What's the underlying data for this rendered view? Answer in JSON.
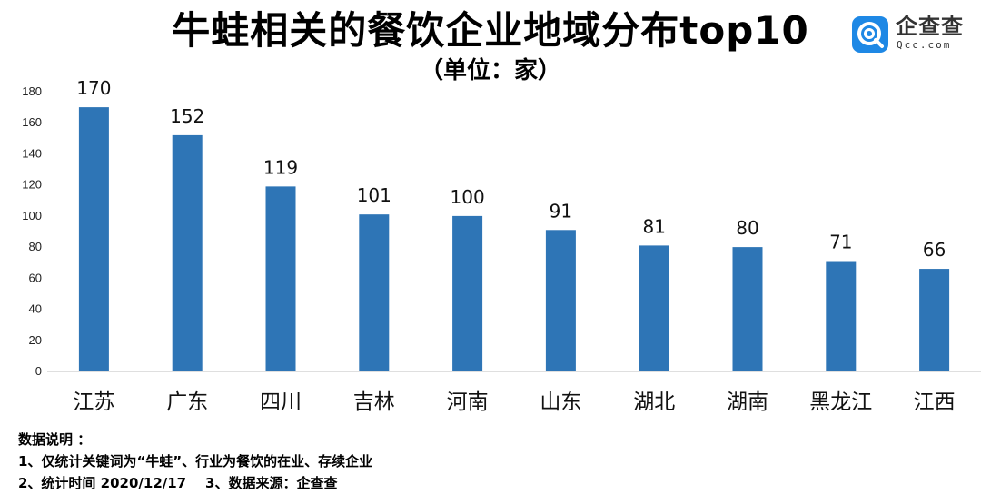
{
  "header": {
    "title": "牛蛙相关的餐饮企业地域分布top10",
    "subtitle": "（单位：家）"
  },
  "logo": {
    "name": "企查查",
    "domain": "Qcc.com",
    "icon": "qcc-logo-icon",
    "color": "#1e88e5"
  },
  "chart_data": {
    "type": "bar",
    "categories": [
      "江苏",
      "广东",
      "四川",
      "吉林",
      "河南",
      "山东",
      "湖北",
      "湖南",
      "黑龙江",
      "江西"
    ],
    "values": [
      170,
      152,
      119,
      101,
      100,
      91,
      81,
      80,
      71,
      66
    ],
    "ylim": [
      0,
      180
    ],
    "yticks": [
      0,
      20,
      40,
      60,
      80,
      100,
      120,
      140,
      160,
      180
    ],
    "bar_color": "#2e75b6",
    "grid": false,
    "data_labels": true
  },
  "notes": {
    "heading": "数据说明 ：",
    "line1": "1、仅统计关键词为“牛蛙”、行业为餐饮的在业、存续企业",
    "line2_a": "2、统计时间 2020/12/17",
    "line2_b": "3、数据来源：企查查"
  }
}
